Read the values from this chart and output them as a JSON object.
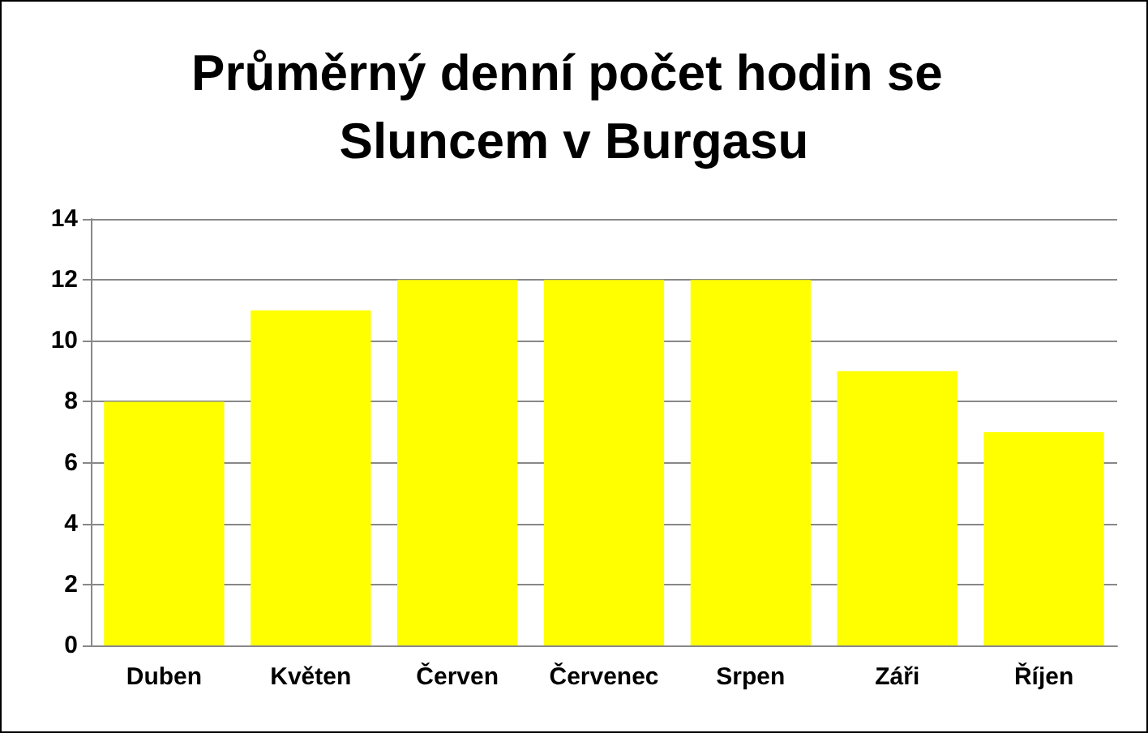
{
  "chart_data": {
    "type": "bar",
    "title": "Průměrný denní počet hodin se Sluncem v Burgasu",
    "categories": [
      "Duben",
      "Květen",
      "Červen",
      "Červenec",
      "Srpen",
      "Záři",
      "Říjen"
    ],
    "values": [
      8,
      11,
      12,
      12,
      12,
      9,
      7
    ],
    "color": "#ffff00",
    "ylim": [
      0,
      14
    ],
    "yticks": [
      0,
      2,
      4,
      6,
      8,
      10,
      12,
      14
    ],
    "grid": "y"
  }
}
